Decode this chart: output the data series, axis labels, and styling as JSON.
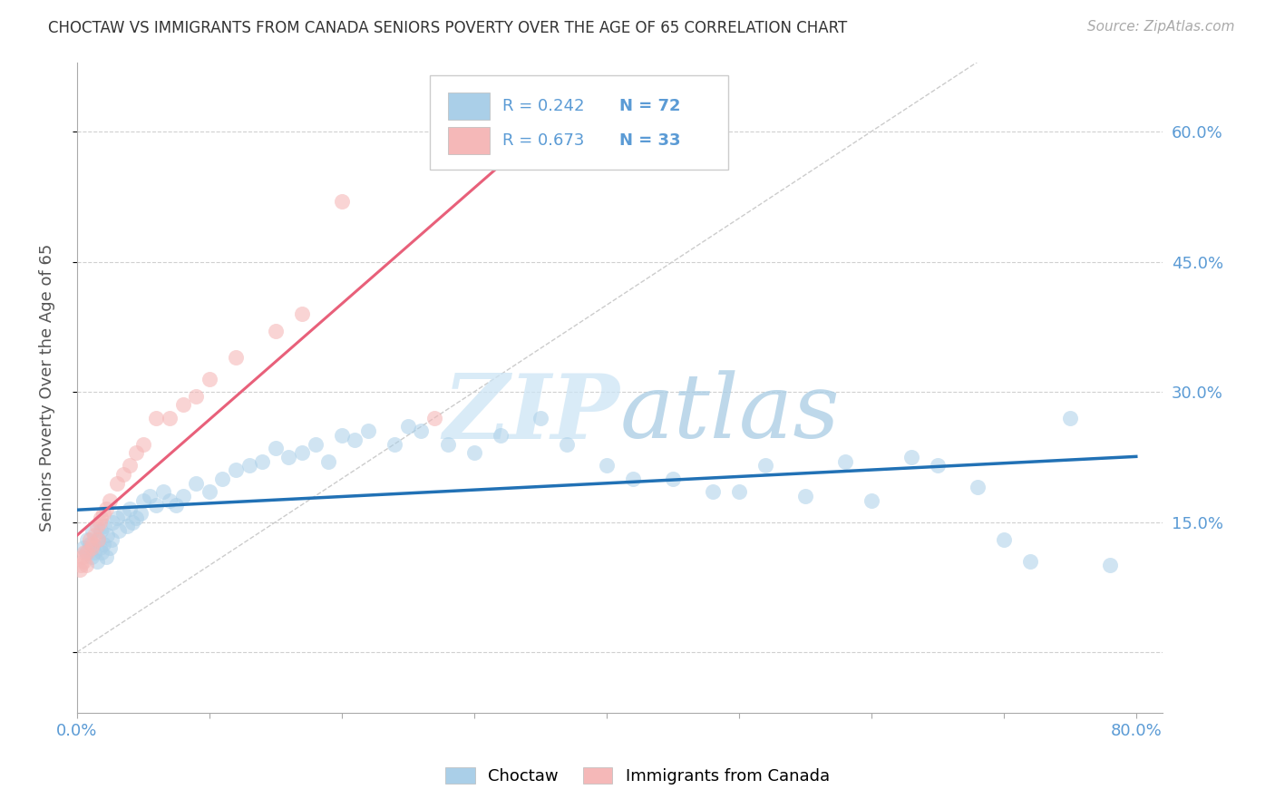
{
  "title": "CHOCTAW VS IMMIGRANTS FROM CANADA SENIORS POVERTY OVER THE AGE OF 65 CORRELATION CHART",
  "source": "Source: ZipAtlas.com",
  "ylabel": "Seniors Poverty Over the Age of 65",
  "xlim": [
    0.0,
    0.82
  ],
  "ylim": [
    -0.07,
    0.68
  ],
  "xticks": [
    0.0,
    0.1,
    0.2,
    0.3,
    0.4,
    0.5,
    0.6,
    0.7,
    0.8
  ],
  "ytick_positions": [
    0.0,
    0.15,
    0.3,
    0.45,
    0.6
  ],
  "yticklabels_right": [
    "",
    "15.0%",
    "30.0%",
    "45.0%",
    "60.0%"
  ],
  "R_blue": 0.242,
  "N_blue": 72,
  "R_pink": 0.673,
  "N_pink": 33,
  "blue_color": "#aacfe8",
  "pink_color": "#f5b8b8",
  "blue_line_color": "#2171b5",
  "pink_line_color": "#e8607a",
  "legend_text_color": "#5b9bd5",
  "watermark_zip_color": "#c5dff0",
  "watermark_atlas_color": "#a8cce4",
  "legend_label_blue": "Choctaw",
  "legend_label_pink": "Immigrants from Canada",
  "blue_x": [
    0.005,
    0.007,
    0.008,
    0.01,
    0.011,
    0.012,
    0.013,
    0.015,
    0.016,
    0.017,
    0.018,
    0.019,
    0.02,
    0.021,
    0.022,
    0.023,
    0.025,
    0.026,
    0.027,
    0.03,
    0.032,
    0.035,
    0.038,
    0.04,
    0.042,
    0.045,
    0.048,
    0.05,
    0.055,
    0.06,
    0.065,
    0.07,
    0.075,
    0.08,
    0.09,
    0.1,
    0.11,
    0.12,
    0.13,
    0.14,
    0.15,
    0.16,
    0.17,
    0.18,
    0.19,
    0.2,
    0.21,
    0.22,
    0.24,
    0.25,
    0.26,
    0.28,
    0.3,
    0.32,
    0.35,
    0.37,
    0.4,
    0.42,
    0.45,
    0.48,
    0.5,
    0.52,
    0.55,
    0.58,
    0.6,
    0.63,
    0.65,
    0.68,
    0.7,
    0.72,
    0.75,
    0.78
  ],
  "blue_y": [
    0.12,
    0.115,
    0.13,
    0.125,
    0.11,
    0.14,
    0.115,
    0.105,
    0.13,
    0.12,
    0.14,
    0.115,
    0.125,
    0.145,
    0.11,
    0.135,
    0.12,
    0.13,
    0.15,
    0.155,
    0.14,
    0.16,
    0.145,
    0.165,
    0.15,
    0.155,
    0.16,
    0.175,
    0.18,
    0.17,
    0.185,
    0.175,
    0.17,
    0.18,
    0.195,
    0.185,
    0.2,
    0.21,
    0.215,
    0.22,
    0.235,
    0.225,
    0.23,
    0.24,
    0.22,
    0.25,
    0.245,
    0.255,
    0.24,
    0.26,
    0.255,
    0.24,
    0.23,
    0.25,
    0.27,
    0.24,
    0.215,
    0.2,
    0.2,
    0.185,
    0.185,
    0.215,
    0.18,
    0.22,
    0.175,
    0.225,
    0.215,
    0.19,
    0.13,
    0.105,
    0.27,
    0.1
  ],
  "pink_x": [
    0.002,
    0.003,
    0.004,
    0.005,
    0.006,
    0.007,
    0.008,
    0.01,
    0.011,
    0.012,
    0.013,
    0.015,
    0.016,
    0.017,
    0.018,
    0.02,
    0.022,
    0.025,
    0.03,
    0.035,
    0.04,
    0.045,
    0.05,
    0.06,
    0.07,
    0.08,
    0.09,
    0.1,
    0.12,
    0.15,
    0.17,
    0.2,
    0.27
  ],
  "pink_y": [
    0.095,
    0.1,
    0.11,
    0.105,
    0.115,
    0.1,
    0.115,
    0.13,
    0.12,
    0.125,
    0.135,
    0.145,
    0.13,
    0.15,
    0.155,
    0.16,
    0.165,
    0.175,
    0.195,
    0.205,
    0.215,
    0.23,
    0.24,
    0.27,
    0.27,
    0.285,
    0.295,
    0.315,
    0.34,
    0.37,
    0.39,
    0.52,
    0.27
  ]
}
